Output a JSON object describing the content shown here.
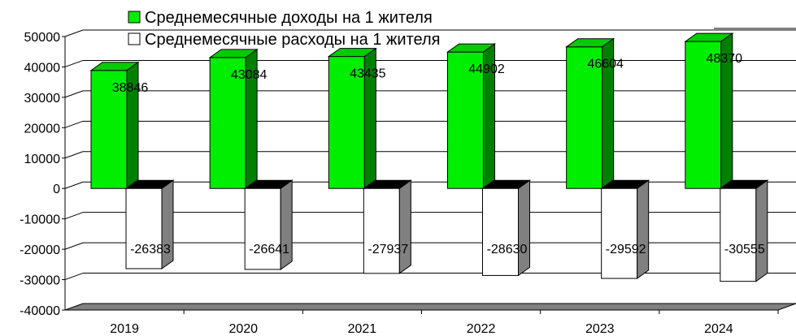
{
  "chart_data": {
    "type": "bar",
    "categories": [
      "2019",
      "2020",
      "2021",
      "2022",
      "2023",
      "2024"
    ],
    "series": [
      {
        "name": "Среднемесячные доходы на 1 жителя",
        "values": [
          38846,
          43084,
          43435,
          44902,
          46604,
          48370
        ],
        "labels": [
          "38846",
          "43084",
          "43435",
          "44902",
          "46604",
          "48370"
        ],
        "color": "#00ee00"
      },
      {
        "name": "Среднемесячные расходы на 1 жителя",
        "values": [
          -26383,
          -26641,
          -27937,
          -28630,
          -29592,
          -30555
        ],
        "labels": [
          "-26383",
          "-26641",
          "-27937",
          "-28630",
          "-29592",
          "-30555"
        ],
        "color": "#ffffff"
      }
    ],
    "ylim": [
      -40000,
      50000
    ],
    "yticks": [
      "50000",
      "40000",
      "30000",
      "20000",
      "10000",
      "0",
      "-10000",
      "-20000",
      "-30000",
      "-40000"
    ],
    "grid": true,
    "three_d": true,
    "legend_position": "top"
  }
}
